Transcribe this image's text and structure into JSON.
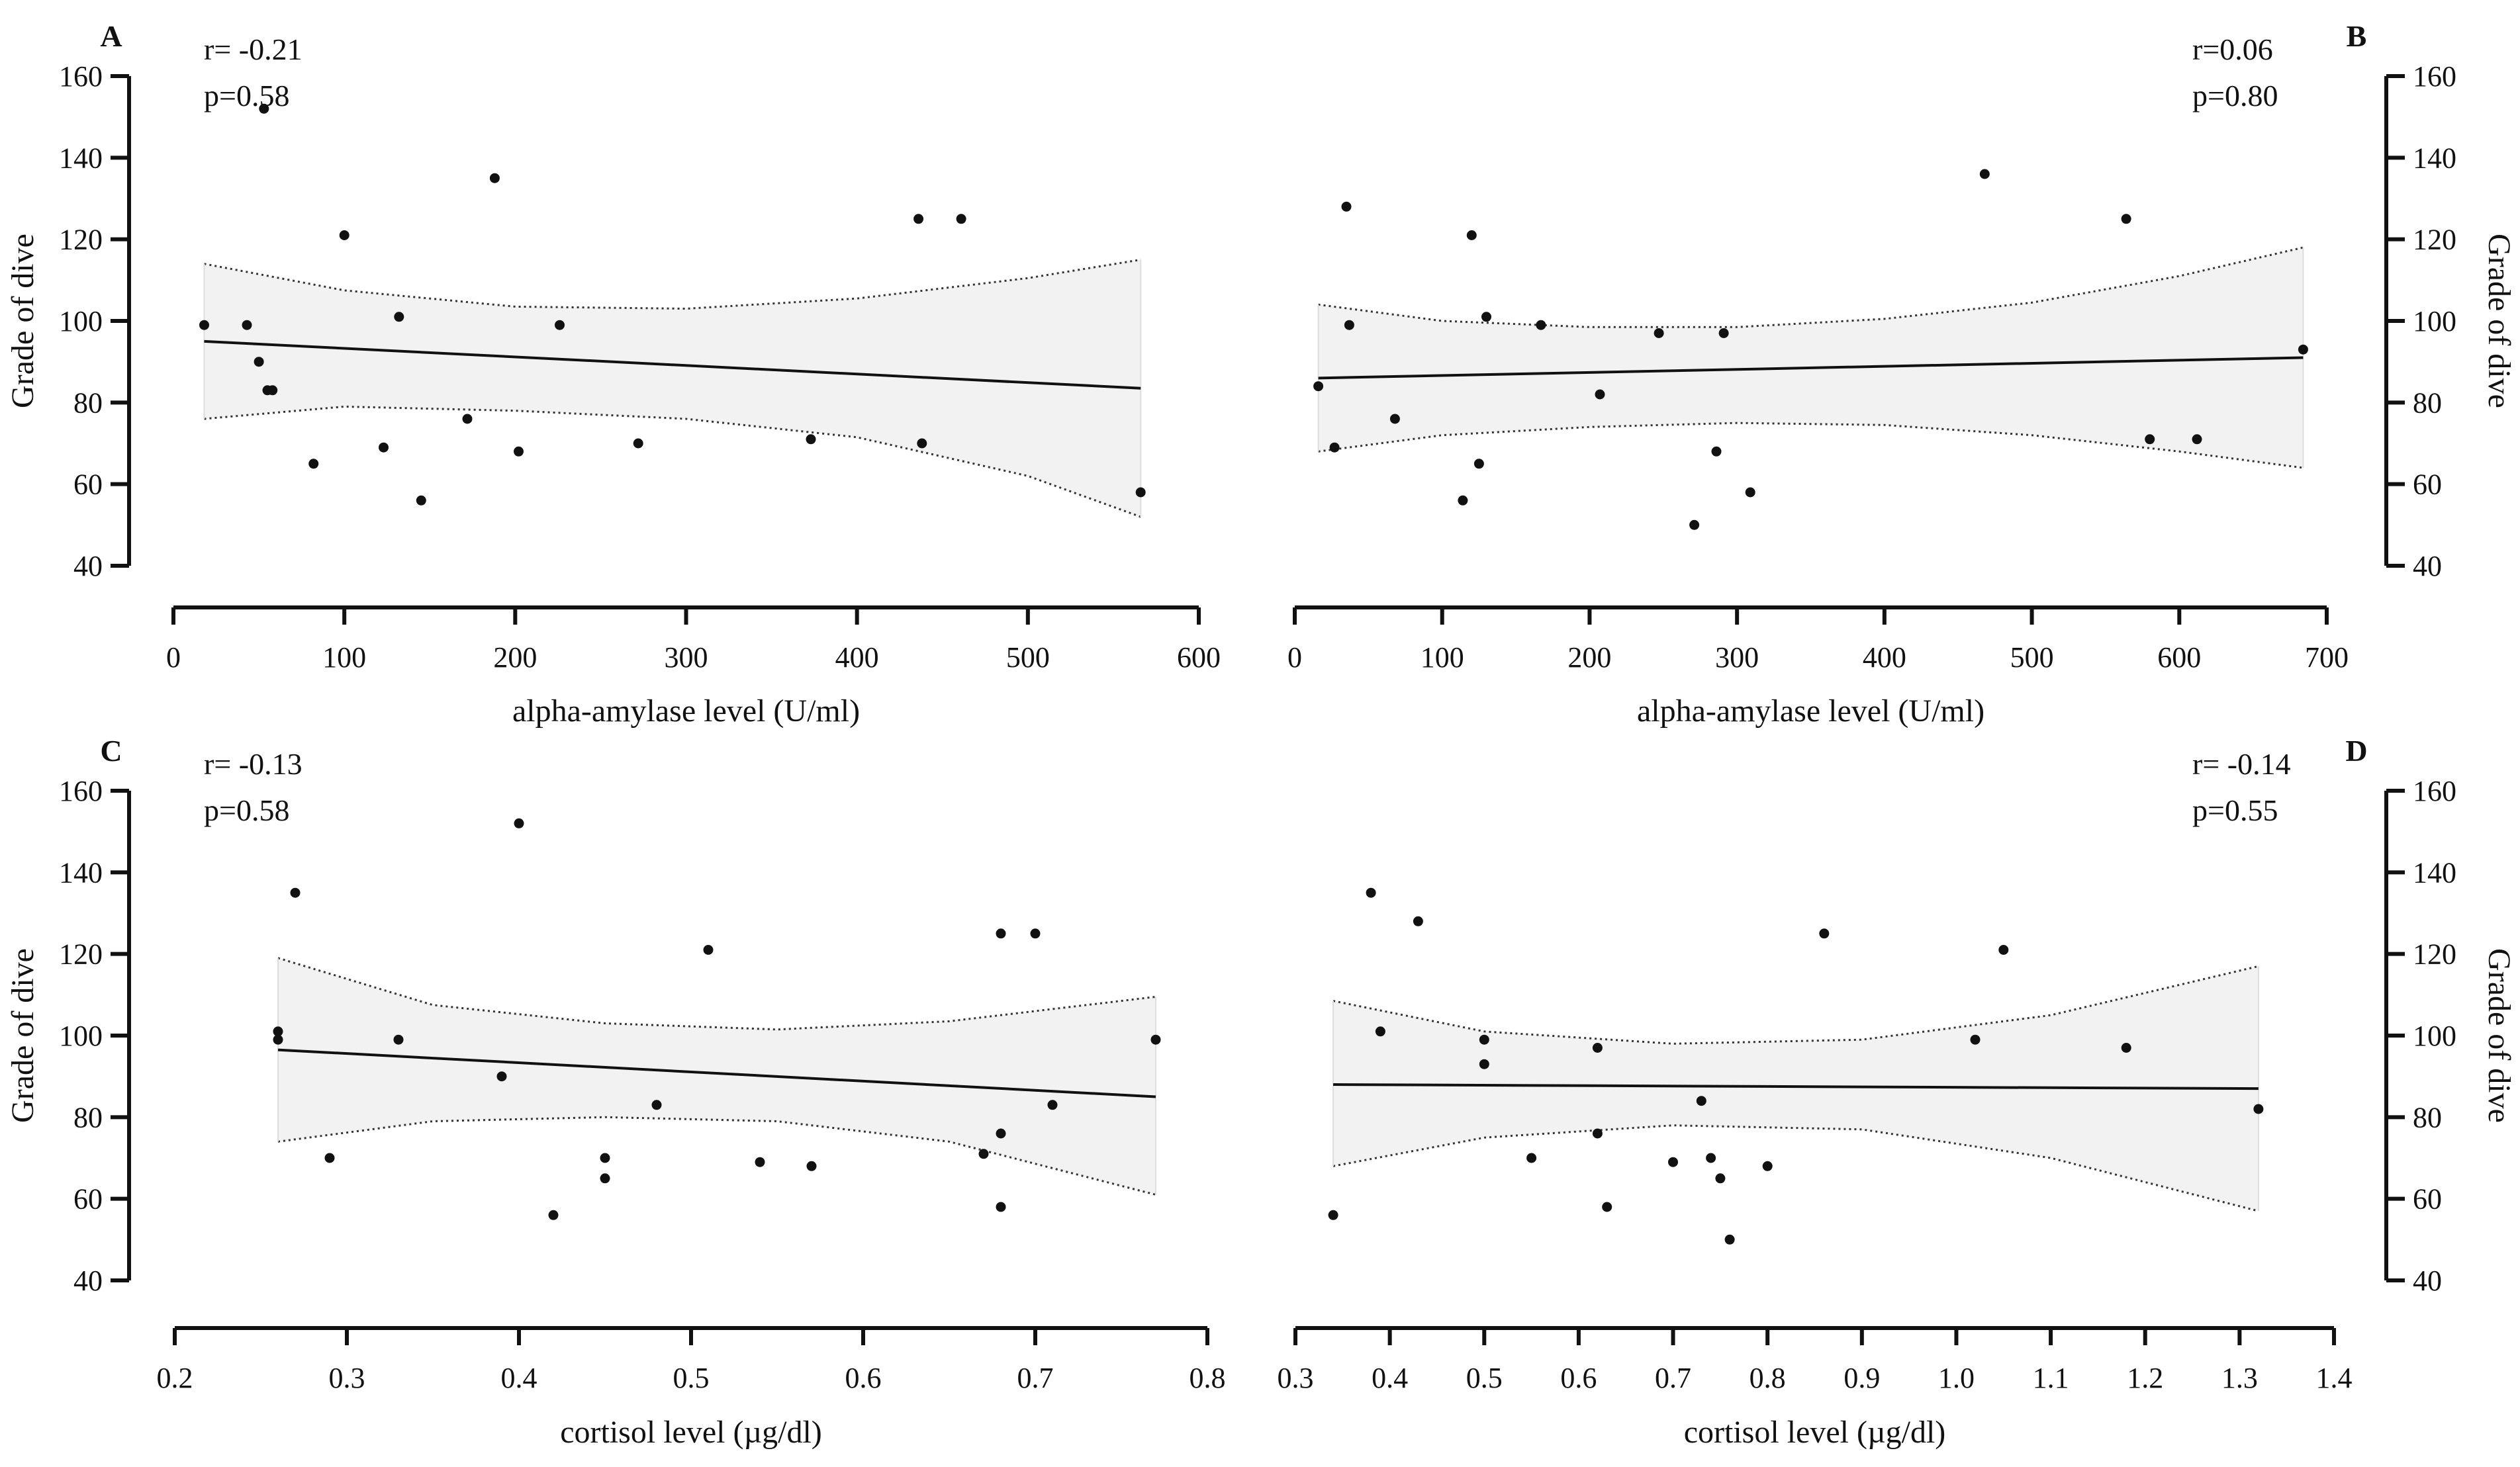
{
  "figure": {
    "panels": [
      {
        "letter": "A",
        "stat_r": "r= -0.21",
        "stat_p": "p=0.58"
      },
      {
        "letter": "B",
        "stat_r": "r=0.06",
        "stat_p": "p=0.80"
      },
      {
        "letter": "C",
        "stat_r": "r= -0.13",
        "stat_p": "p=0.58"
      },
      {
        "letter": "D",
        "stat_r": "r= -0.14",
        "stat_p": "p=0.55"
      }
    ]
  },
  "colors": {
    "points": "#111111",
    "axis": "#111111",
    "band_fill": "#f2f2f2",
    "band_line": "#333333"
  },
  "chart_data": [
    {
      "type": "scatter",
      "panel": "A",
      "xlabel": "alpha-amylase level (U/ml)",
      "ylabel": "Grade of dive",
      "xlim": [
        0,
        600
      ],
      "ylim": [
        40,
        160
      ],
      "xticks": [
        0,
        100,
        200,
        300,
        400,
        500,
        600
      ],
      "yticks": [
        40,
        60,
        80,
        100,
        120,
        140,
        160
      ],
      "y_axis_side": "left",
      "points": [
        [
          18,
          99
        ],
        [
          43,
          99
        ],
        [
          50,
          90
        ],
        [
          53,
          152
        ],
        [
          55,
          83
        ],
        [
          58,
          83
        ],
        [
          82,
          65
        ],
        [
          100,
          121
        ],
        [
          123,
          69
        ],
        [
          132,
          101
        ],
        [
          145,
          56
        ],
        [
          172,
          76
        ],
        [
          188,
          135
        ],
        [
          202,
          68
        ],
        [
          226,
          99
        ],
        [
          272,
          70
        ],
        [
          373,
          71
        ],
        [
          436,
          125
        ],
        [
          438,
          70
        ],
        [
          461,
          125
        ],
        [
          566,
          58
        ]
      ],
      "regression_line": {
        "x": [
          18,
          566
        ],
        "y": [
          95,
          83.5
        ]
      },
      "ci_band": {
        "x": [
          18,
          100,
          200,
          300,
          400,
          500,
          566
        ],
        "upper": [
          114,
          107.5,
          103.5,
          103,
          105.5,
          110.5,
          115
        ],
        "lower": [
          76,
          79,
          78,
          76,
          71.5,
          62,
          52
        ]
      },
      "stat_r": "r= -0.21",
      "stat_p": "p=0.58",
      "panel_label": "A"
    },
    {
      "type": "scatter",
      "panel": "B",
      "xlabel": "alpha-amylase level (U/ml)",
      "ylabel": "Grade of dive",
      "xlim": [
        0,
        700
      ],
      "ylim": [
        40,
        160
      ],
      "xticks": [
        0,
        100,
        200,
        300,
        400,
        500,
        600,
        700
      ],
      "yticks": [
        40,
        60,
        80,
        100,
        120,
        140,
        160
      ],
      "y_axis_side": "right",
      "points": [
        [
          16,
          84
        ],
        [
          27,
          69
        ],
        [
          35,
          128
        ],
        [
          37,
          99
        ],
        [
          68,
          76
        ],
        [
          114,
          56
        ],
        [
          120,
          121
        ],
        [
          125,
          65
        ],
        [
          130,
          101
        ],
        [
          167,
          99
        ],
        [
          207,
          82
        ],
        [
          247,
          97
        ],
        [
          271,
          50
        ],
        [
          286,
          68
        ],
        [
          291,
          97
        ],
        [
          309,
          58
        ],
        [
          468,
          136
        ],
        [
          564,
          125
        ],
        [
          580,
          71
        ],
        [
          612,
          71
        ],
        [
          684,
          93
        ]
      ],
      "regression_line": {
        "x": [
          16,
          684
        ],
        "y": [
          86,
          91
        ]
      },
      "ci_band": {
        "x": [
          16,
          100,
          200,
          300,
          400,
          500,
          600,
          684
        ],
        "upper": [
          104,
          100,
          98.5,
          98.5,
          100.5,
          104.5,
          111,
          118
        ],
        "lower": [
          68,
          72,
          74,
          75,
          74.5,
          72,
          68,
          64
        ]
      },
      "stat_r": "r=0.06",
      "stat_p": "p=0.80",
      "panel_label": "B"
    },
    {
      "type": "scatter",
      "panel": "C",
      "xlabel": "cortisol level (µg/dl)",
      "ylabel": "Grade of dive",
      "xlim": [
        0.2,
        0.8
      ],
      "ylim": [
        40,
        160
      ],
      "xticks": [
        0.2,
        0.3,
        0.4,
        0.5,
        0.6,
        0.7,
        0.8
      ],
      "yticks": [
        40,
        60,
        80,
        100,
        120,
        140,
        160
      ],
      "y_axis_side": "left",
      "points": [
        [
          0.26,
          101
        ],
        [
          0.26,
          99
        ],
        [
          0.27,
          135
        ],
        [
          0.29,
          70
        ],
        [
          0.33,
          99
        ],
        [
          0.39,
          90
        ],
        [
          0.4,
          152
        ],
        [
          0.42,
          56
        ],
        [
          0.45,
          70
        ],
        [
          0.45,
          65
        ],
        [
          0.48,
          83
        ],
        [
          0.51,
          121
        ],
        [
          0.54,
          69
        ],
        [
          0.57,
          68
        ],
        [
          0.67,
          71
        ],
        [
          0.68,
          125
        ],
        [
          0.68,
          76
        ],
        [
          0.68,
          58
        ],
        [
          0.7,
          125
        ],
        [
          0.71,
          83
        ],
        [
          0.77,
          99
        ]
      ],
      "regression_line": {
        "x": [
          0.26,
          0.77
        ],
        "y": [
          96.5,
          85
        ]
      },
      "ci_band": {
        "x": [
          0.26,
          0.35,
          0.45,
          0.55,
          0.65,
          0.77
        ],
        "upper": [
          119,
          107.5,
          103,
          101.5,
          103.5,
          109.5
        ],
        "lower": [
          74,
          79,
          80,
          79,
          74,
          61
        ]
      },
      "stat_r": "r= -0.13",
      "stat_p": "p=0.58",
      "panel_label": "C"
    },
    {
      "type": "scatter",
      "panel": "D",
      "xlabel": "cortisol level (µg/dl)",
      "ylabel": "Grade of dive",
      "xlim": [
        0.3,
        1.4
      ],
      "ylim": [
        40,
        160
      ],
      "xticks": [
        0.3,
        0.4,
        0.5,
        0.6,
        0.7,
        0.8,
        0.9,
        1.0,
        1.1,
        1.2,
        1.3,
        1.4
      ],
      "yticks": [
        40,
        60,
        80,
        100,
        120,
        140,
        160
      ],
      "y_axis_side": "right",
      "points": [
        [
          0.34,
          56
        ],
        [
          0.38,
          135
        ],
        [
          0.39,
          101
        ],
        [
          0.43,
          128
        ],
        [
          0.5,
          99
        ],
        [
          0.5,
          93
        ],
        [
          0.55,
          70
        ],
        [
          0.62,
          97
        ],
        [
          0.62,
          76
        ],
        [
          0.63,
          58
        ],
        [
          0.7,
          69
        ],
        [
          0.73,
          84
        ],
        [
          0.74,
          70
        ],
        [
          0.75,
          65
        ],
        [
          0.76,
          50
        ],
        [
          0.8,
          68
        ],
        [
          0.86,
          125
        ],
        [
          1.02,
          99
        ],
        [
          1.05,
          121
        ],
        [
          1.18,
          97
        ],
        [
          1.32,
          82
        ]
      ],
      "regression_line": {
        "x": [
          0.34,
          1.32
        ],
        "y": [
          88,
          87
        ]
      },
      "ci_band": {
        "x": [
          0.34,
          0.5,
          0.7,
          0.9,
          1.1,
          1.32
        ],
        "upper": [
          108.5,
          101,
          98,
          99,
          105,
          117
        ],
        "lower": [
          68,
          75,
          78,
          77,
          70,
          57
        ]
      },
      "stat_r": "r= -0.14",
      "stat_p": "p=0.55",
      "panel_label": "D"
    }
  ]
}
